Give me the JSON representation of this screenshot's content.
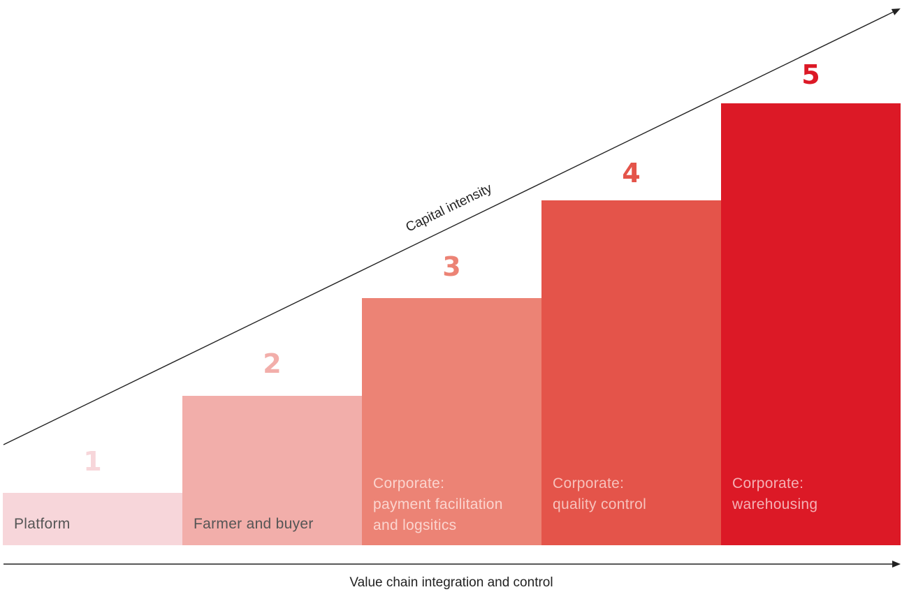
{
  "steps": [
    {
      "number": "1",
      "label_lines": [
        "Platform"
      ],
      "fill": "#f7d6da",
      "number_color": "#f7d6da",
      "label_color": "#555555"
    },
    {
      "number": "2",
      "label_lines": [
        "Farmer and buyer"
      ],
      "fill": "#f2aeaa",
      "number_color": "#f2aeaa",
      "label_color": "#555555"
    },
    {
      "number": "3",
      "label_lines": [
        "Corporate:",
        "payment facilitation",
        "and logsitics"
      ],
      "fill": "#ec8375",
      "number_color": "#ec8375",
      "label_color": "#fbd5cf"
    },
    {
      "number": "4",
      "label_lines": [
        "Corporate:",
        "quality control"
      ],
      "fill": "#e4544a",
      "number_color": "#e4544a",
      "label_color": "#f7c2bc"
    },
    {
      "number": "5",
      "label_lines": [
        "Corporate:",
        "warehousing"
      ],
      "fill": "#dc1926",
      "number_color": "#dc1926",
      "label_color": "#f5b1b5"
    }
  ],
  "diagonal_axis": {
    "label": "Capital intensity",
    "color": "#222222"
  },
  "horizontal_axis": {
    "label": "Value chain integration and control",
    "color": "#222222"
  }
}
